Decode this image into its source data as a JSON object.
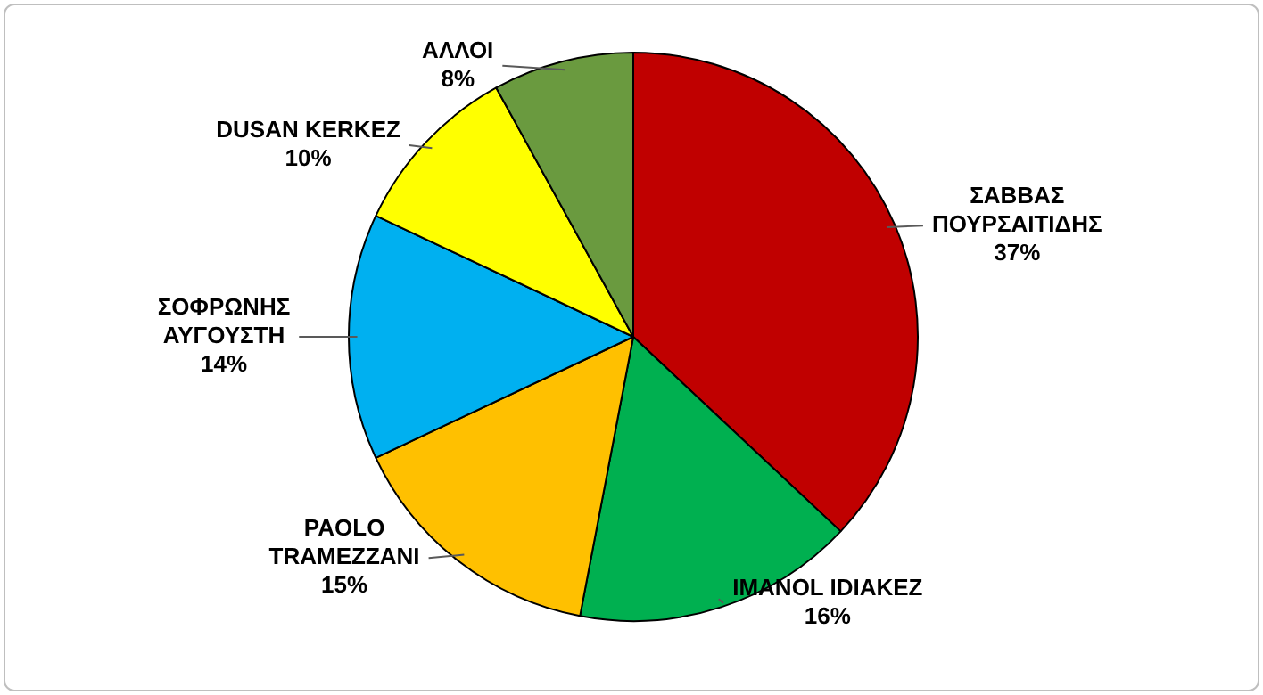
{
  "chart_data": {
    "type": "pie",
    "categories": [
      "ΣΑΒΒΑΣ\nΠΟΥΡΣΑΙΤΙΔΗΣ",
      "IMANOL IDIAKEZ",
      "PAOLO\nTRAMEZZANI",
      "ΣΟΦΡΩΝΗΣ\nΑΥΓΟΥΣΤΗ",
      "DUSAN KERKEZ",
      "ΑΛΛΟΙ"
    ],
    "values": [
      37,
      16,
      15,
      14,
      10,
      8
    ],
    "value_labels": [
      "37%",
      "16%",
      "15%",
      "14%",
      "10%",
      "8%"
    ],
    "colors": [
      "#c00000",
      "#00b050",
      "#ffc000",
      "#00b0f0",
      "#ffff00",
      "#6a9a3f"
    ],
    "legend": false
  }
}
